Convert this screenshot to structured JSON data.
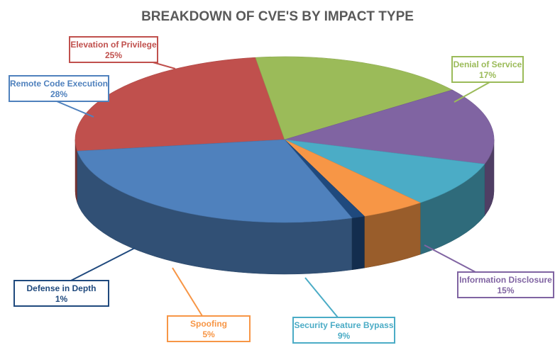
{
  "chart_data": {
    "type": "pie",
    "title": "BREAKDOWN OF CVE'S BY IMPACT TYPE",
    "slices": [
      {
        "label": "Elevation of Privilege",
        "value": 25,
        "value_label": "25%",
        "color": "#c0504d"
      },
      {
        "label": "Denial of Service",
        "value": 17,
        "value_label": "17%",
        "color": "#9bbb59"
      },
      {
        "label": "Information Disclosure",
        "value": 15,
        "value_label": "15%",
        "color": "#8064a2"
      },
      {
        "label": "Security Feature Bypass",
        "value": 9,
        "value_label": "9%",
        "color": "#4bacc6"
      },
      {
        "label": "Spoofing",
        "value": 5,
        "value_label": "5%",
        "color": "#f79646"
      },
      {
        "label": "Defense in Depth",
        "value": 1,
        "value_label": "1%",
        "color": "#1f497d"
      },
      {
        "label": "Remote Code Execution",
        "value": 28,
        "value_label": "28%",
        "color": "#4f81bd"
      }
    ],
    "style": "3d-pie",
    "legend": "none"
  }
}
